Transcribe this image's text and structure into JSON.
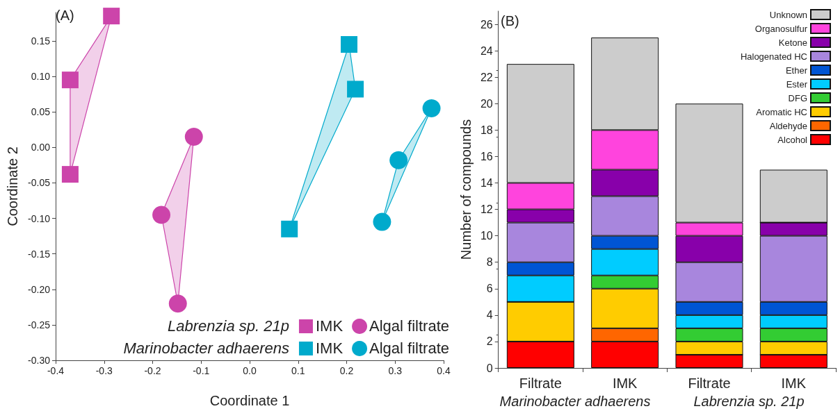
{
  "chart_data": [
    {
      "type": "scatter",
      "title": "(A)",
      "xlabel": "Coordinate 1",
      "ylabel": "Coordinate 2",
      "xlim": [
        -0.4,
        0.4
      ],
      "ylim": [
        -0.3,
        0.19
      ],
      "xticks": [
        {
          "value": -0.4,
          "label": "-0.4"
        },
        {
          "value": -0.3,
          "label": "-0.3"
        },
        {
          "value": -0.2,
          "label": "-0.2"
        },
        {
          "value": -0.1,
          "label": "-0.1"
        },
        {
          "value": 0,
          "label": "0.0"
        },
        {
          "value": 0.1,
          "label": "0.1"
        },
        {
          "value": 0.2,
          "label": "0.2"
        },
        {
          "value": 0.3,
          "label": "0.3"
        },
        {
          "value": 0.4,
          "label": "0.4"
        }
      ],
      "yticks": [
        {
          "value": -0.3,
          "label": "-0.30"
        },
        {
          "value": -0.25,
          "label": "-0.25"
        },
        {
          "value": -0.2,
          "label": "-0.20"
        },
        {
          "value": -0.15,
          "label": "-0.15"
        },
        {
          "value": -0.1,
          "label": "-0.10"
        },
        {
          "value": -0.05,
          "label": "-0.05"
        },
        {
          "value": 0,
          "label": "0.00"
        },
        {
          "value": 0.05,
          "label": "0.05"
        },
        {
          "value": 0.1,
          "label": "0.10"
        },
        {
          "value": 0.15,
          "label": "0.15"
        }
      ],
      "grid": false,
      "legend": "bottom right",
      "annotations": [
        "Labrenzia sp. 21p",
        "Marinobacter adhaerens"
      ],
      "series": [
        {
          "name": "IMK",
          "color": "#cc44aa",
          "marker": "square",
          "x": [
            -0.285,
            -0.37,
            -0.37
          ],
          "values": [
            0.185,
            0.095,
            -0.038
          ]
        },
        {
          "name": "Algal filtrate",
          "color": "#cc44aa",
          "marker": "circle",
          "x": [
            -0.115,
            -0.182,
            -0.148
          ],
          "values": [
            0.015,
            -0.095,
            -0.22
          ]
        },
        {
          "name": "IMK",
          "color": "#00aacc",
          "marker": "square",
          "x": [
            0.205,
            0.218,
            0.082
          ],
          "values": [
            0.145,
            0.082,
            -0.115
          ]
        },
        {
          "name": "Algal filtrate",
          "color": "#00aacc",
          "marker": "circle",
          "x": [
            0.375,
            0.307,
            0.273
          ],
          "values": [
            0.055,
            -0.018,
            -0.105
          ]
        }
      ]
    },
    {
      "type": "bar",
      "stacked": true,
      "title": "(B)",
      "ylabel": "Number of compounds",
      "categories": [
        "Filtrate",
        "IMK",
        "Filtrate",
        "IMK"
      ],
      "annotations": [
        "Marinobacter adhaerens",
        "Labrenzia sp. 21p"
      ],
      "ylim": [
        0,
        27
      ],
      "yticks": [
        0,
        2,
        4,
        6,
        8,
        10,
        12,
        14,
        16,
        18,
        20,
        22,
        24,
        26
      ],
      "grid": false,
      "legend": "top right",
      "series": [
        {
          "name": "Alcohol",
          "color": "#ff0000",
          "values": [
            2,
            2,
            1,
            1
          ]
        },
        {
          "name": "Aldehyde",
          "color": "#ff6600",
          "values": [
            0,
            1,
            0,
            0
          ]
        },
        {
          "name": "Aromatic HC",
          "color": "#ffcc00",
          "values": [
            3,
            3,
            1,
            1
          ]
        },
        {
          "name": "DFG",
          "color": "#33cc33",
          "values": [
            0,
            1,
            1,
            1
          ]
        },
        {
          "name": "Ester",
          "color": "#00ccff",
          "values": [
            2,
            2,
            1,
            1
          ]
        },
        {
          "name": "Ether",
          "color": "#0055d4",
          "values": [
            1,
            1,
            1,
            1
          ]
        },
        {
          "name": "Halogenated HC",
          "color": "#a886dd",
          "values": [
            3,
            3,
            3,
            5
          ]
        },
        {
          "name": "Ketone",
          "color": "#8800aa",
          "values": [
            1,
            2,
            2,
            1
          ]
        },
        {
          "name": "Organosulfur",
          "color": "#ff44dd",
          "values": [
            2,
            3,
            1,
            0
          ]
        },
        {
          "name": "Unknown",
          "color": "#cccccc",
          "values": [
            9,
            7,
            9,
            4
          ]
        }
      ]
    }
  ]
}
